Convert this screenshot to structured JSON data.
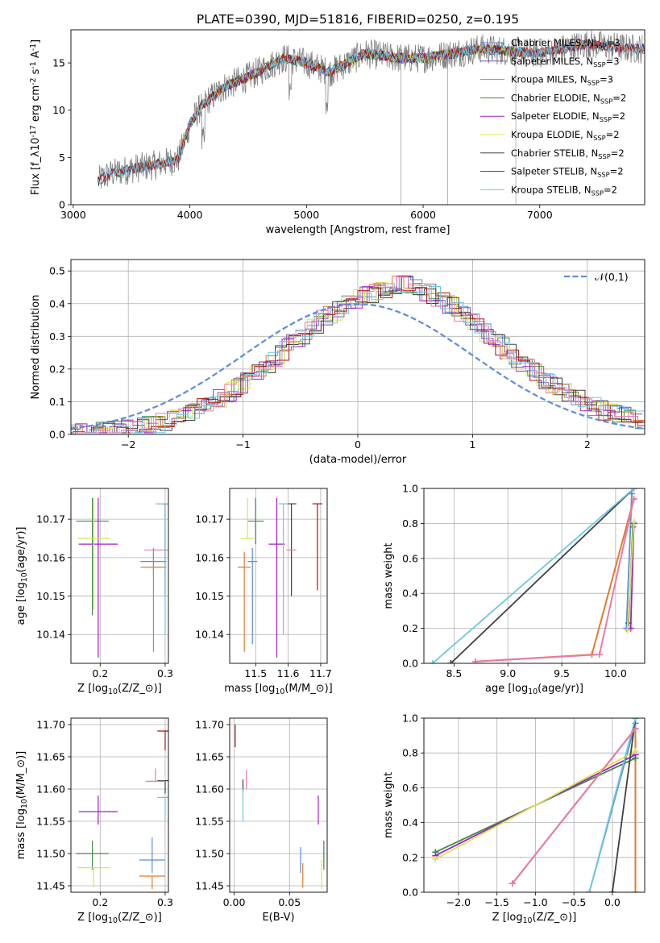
{
  "figure": {
    "title": "PLATE=0390, MJD=51816, FIBERID=0250, z=0.195"
  },
  "colors": {
    "chabrier_miles": "#5b8ddb",
    "salpeter_miles": "#7b4fa0",
    "kroupa_miles": "#e07b2a",
    "chabrier_elodie": "#3f8a3f",
    "salpeter_elodie": "#a020c8",
    "kroupa_elodie": "#d8e84a",
    "chabrier_stelib": "#404040",
    "salpeter_stelib": "#b01010",
    "kroupa_stelib": "#6cc8e0",
    "gauss": "#5b8ddb",
    "hist_pink": "#e87aa8"
  },
  "chart_data": [
    {
      "id": "spectrum",
      "type": "line",
      "title": "PLATE=0390, MJD=51816, FIBERID=0250, z=0.195",
      "xlabel": "wavelength [Angstrom, rest frame]",
      "ylabel": "Flux [f$_\\lambda$10$^{-17}$ erg cm$^{-2}$ s$^{-1}$ A$^{-1}$]",
      "xlim": [
        2980,
        7900
      ],
      "ylim": [
        0,
        18.5
      ],
      "xticks": [
        3000,
        4000,
        5000,
        6000,
        7000
      ],
      "yticks": [
        0,
        5,
        10,
        15
      ],
      "legend_position": "top-right",
      "data_profile": {
        "wavelength": [
          3210,
          3300,
          3500,
          3700,
          3900,
          4000,
          4100,
          4300,
          4500,
          4800,
          5000,
          5200,
          5500,
          5800,
          6000,
          6500,
          7000,
          7400,
          7800
        ],
        "flux": [
          2.5,
          3.2,
          3.8,
          4.2,
          4.8,
          8.5,
          10.5,
          12.5,
          13.5,
          15.5,
          15.0,
          14.0,
          16.0,
          15.5,
          15.5,
          16.5,
          16.0,
          17.0,
          16.5
        ]
      },
      "series": [
        {
          "name": "Chabrier MILES, N$_{SSP}$=3"
        },
        {
          "name": "Salpeter MILES, N$_{SSP}$=3"
        },
        {
          "name": "Kroupa MILES, N$_{SSP}$=3"
        },
        {
          "name": "Chabrier ELODIE, N$_{SSP}$=2"
        },
        {
          "name": "Salpeter ELODIE, N$_{SSP}$=2"
        },
        {
          "name": "Kroupa ELODIE, N$_{SSP}$=2"
        },
        {
          "name": "Chabrier STELIB, N$_{SSP}$=2"
        },
        {
          "name": "Salpeter STELIB, N$_{SSP}$=2"
        },
        {
          "name": "Kroupa STELIB, N$_{SSP}$=2"
        }
      ]
    },
    {
      "id": "residuals",
      "type": "histogram",
      "xlabel": "(data-model)/error",
      "ylabel": "Normed distribution",
      "xlim": [
        -2.5,
        2.5
      ],
      "ylim": [
        0,
        0.535
      ],
      "xticks": [
        -2,
        -1,
        0,
        1,
        2
      ],
      "yticks": [
        0.0,
        0.1,
        0.2,
        0.3,
        0.4,
        0.5
      ],
      "grid": true,
      "legend_position": "top-right",
      "reference_curve": {
        "name": "$\\mathcal{N}(0,1)$",
        "mean": 0,
        "sigma": 1
      },
      "bin_width": 0.1,
      "typical_density": [
        0.01,
        0.02,
        0.03,
        0.05,
        0.07,
        0.1,
        0.13,
        0.17,
        0.21,
        0.26,
        0.3,
        0.36,
        0.4,
        0.42,
        0.41,
        0.4,
        0.41,
        0.43,
        0.44,
        0.42,
        0.36,
        0.28,
        0.22,
        0.16,
        0.11,
        0.07,
        0.05,
        0.04,
        0.03,
        0.03
      ]
    },
    {
      "id": "age_vs_Z",
      "type": "errorbar",
      "xlabel": "Z [log$_{10}$($Z/Z_\\odot$)]",
      "ylabel": "age  [log$_{10}$($age/yr$)]",
      "xlim": [
        0.155,
        0.305
      ],
      "ylim": [
        10.1325,
        10.178
      ],
      "xticks": [
        0.2,
        0.3
      ],
      "yticks": [
        10.14,
        10.15,
        10.16,
        10.17
      ],
      "grid": true,
      "points": [
        {
          "model": "chabrier_miles",
          "x": 0.282,
          "y": 10.159,
          "xerr": 0.02,
          "yerr": [
            0.0035,
            0.0035
          ]
        },
        {
          "model": "kroupa_miles",
          "x": 0.282,
          "y": 10.1575,
          "xerr": 0.02,
          "yerr": [
            0.022,
            0.004
          ]
        },
        {
          "model": "chabrier_elodie",
          "x": 0.188,
          "y": 10.1695,
          "xerr": 0.025,
          "yerr": [
            0.0245,
            0.006
          ]
        },
        {
          "model": "salpeter_elodie",
          "x": 0.197,
          "y": 10.1635,
          "xerr": 0.03,
          "yerr": [
            0.0295,
            0.012
          ]
        },
        {
          "model": "kroupa_elodie",
          "x": 0.19,
          "y": 10.165,
          "xerr": 0.025,
          "yerr": [
            0.0185,
            0.0105
          ]
        },
        {
          "model": "chabrier_stelib",
          "x": 0.3,
          "y": 10.174,
          "xerr": 0.012,
          "yerr": [
            0.024,
            0.0
          ]
        },
        {
          "model": "salpeter_stelib",
          "x": 0.3,
          "y": 10.174,
          "xerr": 0.005,
          "yerr": [
            0.0,
            0.0
          ]
        },
        {
          "model": "kroupa_stelib",
          "x": 0.3,
          "y": 10.174,
          "xerr": 0.015,
          "yerr": [
            0.034,
            0.0
          ]
        },
        {
          "model": "hist_pink",
          "x": 0.288,
          "y": 10.162,
          "xerr": 0.02,
          "yerr": [
            0.0,
            0.0
          ]
        }
      ]
    },
    {
      "id": "age_vs_mass",
      "type": "errorbar",
      "xlabel": "mass [log$_{10}$($M/M_\\odot$)]",
      "xlim": [
        11.42,
        11.72
      ],
      "ylim": [
        10.1325,
        10.178
      ],
      "xticks": [
        11.5,
        11.6,
        11.7
      ],
      "yticks": [
        10.14,
        10.15,
        10.16,
        10.17
      ],
      "grid": true,
      "points": [
        {
          "model": "chabrier_miles",
          "x": 11.49,
          "y": 10.159,
          "xerr": 0.015,
          "yerr": [
            0.0215,
            0.0035
          ]
        },
        {
          "model": "kroupa_miles",
          "x": 11.465,
          "y": 10.1575,
          "xerr": 0.02,
          "yerr": [
            0.022,
            0.004
          ]
        },
        {
          "model": "chabrier_elodie",
          "x": 11.5,
          "y": 10.1695,
          "xerr": 0.025,
          "yerr": [
            0.006,
            0.006
          ]
        },
        {
          "model": "salpeter_elodie",
          "x": 11.565,
          "y": 10.1635,
          "xerr": 0.025,
          "yerr": [
            0.0295,
            0.012
          ]
        },
        {
          "model": "kroupa_elodie",
          "x": 11.475,
          "y": 10.165,
          "xerr": 0.02,
          "yerr": [
            0.0,
            0.0105
          ]
        },
        {
          "model": "chabrier_stelib",
          "x": 11.61,
          "y": 10.174,
          "xerr": 0.015,
          "yerr": [
            0.024,
            0.0
          ]
        },
        {
          "model": "salpeter_stelib",
          "x": 11.69,
          "y": 10.174,
          "xerr": 0.015,
          "yerr": [
            0.0225,
            0.0
          ]
        },
        {
          "model": "kroupa_stelib",
          "x": 11.585,
          "y": 10.174,
          "xerr": 0.015,
          "yerr": [
            0.034,
            0.0
          ]
        },
        {
          "model": "hist_pink",
          "x": 11.61,
          "y": 10.162,
          "xerr": 0.015,
          "yerr": [
            0.0,
            0.0
          ]
        }
      ]
    },
    {
      "id": "weight_vs_age",
      "type": "line",
      "xlabel": "age  [log$_{10}$($age/yr$)]",
      "ylabel": "mass weight",
      "xlim": [
        8.22,
        10.27
      ],
      "ylim": [
        0,
        1.0
      ],
      "xticks": [
        8.5,
        9.0,
        9.5,
        10.0
      ],
      "yticks": [
        0.0,
        0.2,
        0.4,
        0.6,
        0.8,
        1.0
      ],
      "grid": true,
      "series": [
        {
          "model": "chabrier_miles",
          "x": [
            10.1,
            10.15
          ],
          "y": [
            0.2,
            0.97
          ]
        },
        {
          "model": "kroupa_miles",
          "x": [
            8.7,
            9.78,
            10.17
          ],
          "y": [
            0.01,
            0.05,
            0.94
          ]
        },
        {
          "model": "chabrier_elodie",
          "x": [
            10.12,
            10.16
          ],
          "y": [
            0.23,
            0.78
          ]
        },
        {
          "model": "salpeter_elodie",
          "x": [
            10.14,
            10.17
          ],
          "y": [
            0.2,
            0.8
          ]
        },
        {
          "model": "kroupa_elodie",
          "x": [
            10.11,
            10.17
          ],
          "y": [
            0.19,
            0.81
          ]
        },
        {
          "model": "chabrier_stelib",
          "x": [
            8.47,
            10.17
          ],
          "y": [
            0.0,
            1.0
          ]
        },
        {
          "model": "kroupa_stelib",
          "x": [
            8.3,
            10.17
          ],
          "y": [
            0.0,
            1.0
          ]
        },
        {
          "model": "hist_pink",
          "x": [
            8.7,
            9.85,
            10.17
          ],
          "y": [
            0.01,
            0.05,
            0.94
          ]
        }
      ]
    },
    {
      "id": "mass_vs_Z",
      "type": "errorbar",
      "xlabel": "Z [log$_{10}$($Z/Z_\\odot$)]",
      "ylabel": "mass [log$_{10}$($M/M_\\odot$)]",
      "xlim": [
        0.155,
        0.305
      ],
      "ylim": [
        11.44,
        11.71
      ],
      "xticks": [
        0.2,
        0.3
      ],
      "yticks": [
        11.45,
        11.5,
        11.55,
        11.6,
        11.65,
        11.7
      ],
      "grid": true,
      "points": [
        {
          "model": "chabrier_miles",
          "x": 0.28,
          "y": 11.49,
          "xerr": 0.02,
          "yerr": [
            0.02,
            0.035
          ]
        },
        {
          "model": "kroupa_miles",
          "x": 0.28,
          "y": 11.465,
          "xerr": 0.02,
          "yerr": [
            0.02,
            0.0
          ]
        },
        {
          "model": "chabrier_elodie",
          "x": 0.188,
          "y": 11.5,
          "xerr": 0.025,
          "yerr": [
            0.025,
            0.02
          ]
        },
        {
          "model": "salpeter_elodie",
          "x": 0.197,
          "y": 11.565,
          "xerr": 0.03,
          "yerr": [
            0.02,
            0.025
          ]
        },
        {
          "model": "kroupa_elodie",
          "x": 0.19,
          "y": 11.478,
          "xerr": 0.025,
          "yerr": [
            0.03,
            0.0
          ]
        },
        {
          "model": "chabrier_stelib",
          "x": 0.3,
          "y": 11.613,
          "xerr": 0.012,
          "yerr": [
            0.02,
            0.0
          ]
        },
        {
          "model": "salpeter_stelib",
          "x": 0.3,
          "y": 11.69,
          "xerr": 0.012,
          "yerr": [
            0.03,
            0.0
          ]
        },
        {
          "model": "kroupa_stelib",
          "x": 0.3,
          "y": 11.587,
          "xerr": 0.012,
          "yerr": [
            0.035,
            0.0
          ]
        },
        {
          "model": "hist_pink",
          "x": 0.285,
          "y": 11.612,
          "xerr": 0.015,
          "yerr": [
            0.0,
            0.02
          ]
        }
      ]
    },
    {
      "id": "mass_vs_ebv",
      "type": "errorbar",
      "xlabel": "E(B-V)",
      "xlim": [
        -0.004,
        0.084
      ],
      "ylim": [
        11.44,
        11.71
      ],
      "xticks": [
        0.0,
        0.05
      ],
      "yticks": [
        11.45,
        11.5,
        11.55,
        11.6,
        11.65,
        11.7
      ],
      "grid": true,
      "points": [
        {
          "model": "chabrier_miles",
          "x": 0.06,
          "y": 11.49,
          "xerr": 0.0,
          "yerr": [
            0.02,
            0.02
          ]
        },
        {
          "model": "kroupa_miles",
          "x": 0.062,
          "y": 11.465,
          "xerr": 0.0,
          "yerr": [
            0.018,
            0.02
          ]
        },
        {
          "model": "chabrier_elodie",
          "x": 0.081,
          "y": 11.5,
          "xerr": 0.0,
          "yerr": [
            0.025,
            0.02
          ]
        },
        {
          "model": "salpeter_elodie",
          "x": 0.076,
          "y": 11.565,
          "xerr": 0.0,
          "yerr": [
            0.02,
            0.025
          ]
        },
        {
          "model": "kroupa_elodie",
          "x": 0.079,
          "y": 11.47,
          "xerr": 0.0,
          "yerr": [
            0.025,
            0.02
          ]
        },
        {
          "model": "chabrier_stelib",
          "x": 0.008,
          "y": 11.605,
          "xerr": 0.0,
          "yerr": [
            0.01,
            0.01
          ]
        },
        {
          "model": "salpeter_stelib",
          "x": 0.001,
          "y": 11.683,
          "xerr": 0.0,
          "yerr": [
            0.018,
            0.017
          ]
        },
        {
          "model": "kroupa_stelib",
          "x": 0.008,
          "y": 11.57,
          "xerr": 0.0,
          "yerr": [
            0.02,
            0.03
          ]
        },
        {
          "model": "hist_pink",
          "x": 0.011,
          "y": 11.615,
          "xerr": 0.0,
          "yerr": [
            0.015,
            0.015
          ]
        }
      ]
    },
    {
      "id": "weight_vs_Z",
      "type": "line",
      "xlabel": "Z [log$_{10}$($Z/Z_\\odot$)]",
      "ylabel": "mass weight",
      "xlim": [
        -2.45,
        0.42
      ],
      "ylim": [
        0,
        1.0
      ],
      "xticks": [
        -2.0,
        -1.5,
        -1.0,
        -0.5,
        0.0
      ],
      "yticks": [
        0.0,
        0.2,
        0.4,
        0.6,
        0.8,
        1.0
      ],
      "grid": true,
      "series": [
        {
          "model": "chabrier_miles",
          "x": [
            -0.3,
            0.3
          ],
          "y": [
            0.0,
            0.97
          ]
        },
        {
          "model": "kroupa_miles",
          "x": [
            -1.3,
            0.3,
            0.3
          ],
          "y": [
            0.05,
            0.94,
            0.0
          ]
        },
        {
          "model": "chabrier_elodie",
          "x": [
            -2.3,
            0.3
          ],
          "y": [
            0.23,
            0.77
          ]
        },
        {
          "model": "salpeter_elodie",
          "x": [
            -2.3,
            0.3
          ],
          "y": [
            0.21,
            0.79
          ]
        },
        {
          "model": "kroupa_elodie",
          "x": [
            -2.3,
            0.3
          ],
          "y": [
            0.19,
            0.81
          ]
        },
        {
          "model": "chabrier_stelib",
          "x": [
            0.0,
            0.3
          ],
          "y": [
            0.0,
            1.0
          ]
        },
        {
          "model": "kroupa_stelib",
          "x": [
            -0.3,
            0.3
          ],
          "y": [
            0.0,
            1.0
          ]
        },
        {
          "model": "hist_pink",
          "x": [
            -1.3,
            0.3
          ],
          "y": [
            0.05,
            0.94
          ]
        }
      ]
    }
  ]
}
